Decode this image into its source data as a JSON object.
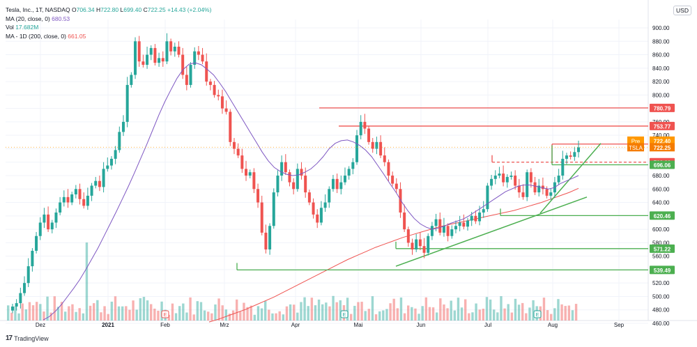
{
  "legend": {
    "title": "Tesla, Inc., 1T, NASDAQ",
    "o_label": "O",
    "o": "706.34",
    "h_label": "H",
    "h": "722.80",
    "l_label": "L",
    "l": "699.40",
    "c_label": "C",
    "c": "722.25",
    "change": "+14.43 (+2.04%)",
    "ma20_label": "MA (20, close, 0)",
    "ma20_value": "680.53",
    "vol_label": "Vol",
    "vol_value": "17.682M",
    "ma200_label": "MA - 1D (200, close, 0)",
    "ma200_value": "661.05"
  },
  "currency": "USD",
  "brand": "TradingView",
  "chart_data": {
    "type": "candlestick",
    "symbol": "TSLA",
    "ylim": [
      460,
      900
    ],
    "yticks": [
      900,
      880,
      860,
      840,
      820,
      800,
      780,
      760,
      740,
      720,
      700,
      680,
      660,
      640,
      620,
      600,
      580,
      560,
      540,
      520,
      500,
      480,
      460
    ],
    "xlabels": [
      "Dez",
      "2021",
      "Feb",
      "Mrz",
      "Apr",
      "Mai",
      "Jun",
      "Jul",
      "Aug",
      "Sep"
    ],
    "price_lines": [
      {
        "value": 780.79,
        "label": "780.79",
        "color": "#ef5350"
      },
      {
        "value": 753.77,
        "label": "753.77",
        "color": "#ef5350"
      },
      {
        "value": 726.94,
        "label": "726.94",
        "color": "#ef5350"
      },
      {
        "value": 700.0,
        "label": "700.00",
        "color": "#ef5350"
      },
      {
        "value": 696.06,
        "label": "696.06",
        "color": "#4caf50"
      },
      {
        "value": 620.46,
        "label": "620.46",
        "color": "#4caf50"
      },
      {
        "value": 571.22,
        "label": "571.22",
        "color": "#4caf50"
      },
      {
        "value": 539.49,
        "label": "539.49",
        "color": "#4caf50"
      }
    ],
    "pre_label": "Pre",
    "pre_value": "722.40",
    "last_label": "TSLA",
    "last_value": "722.25",
    "closes": [
      485,
      490,
      505,
      520,
      545,
      568,
      590,
      610,
      622,
      600,
      610,
      625,
      640,
      648,
      640,
      652,
      660,
      645,
      635,
      650,
      665,
      672,
      663,
      690,
      695,
      705,
      718,
      745,
      760,
      815,
      830,
      880,
      850,
      845,
      860,
      870,
      848,
      855,
      850,
      880,
      865,
      872,
      860,
      830,
      815,
      845,
      865,
      860,
      850,
      820,
      815,
      800,
      798,
      780,
      775,
      730,
      720,
      710,
      690,
      680,
      685,
      660,
      640,
      595,
      570,
      605,
      655,
      680,
      700,
      685,
      670,
      660,
      690,
      680,
      655,
      640,
      622,
      610,
      632,
      640,
      660,
      675,
      660,
      670,
      680,
      690,
      700,
      740,
      760,
      750,
      730,
      720,
      730,
      710,
      700,
      680,
      668,
      660,
      625,
      600,
      580,
      570,
      585,
      575,
      565,
      590,
      605,
      615,
      595,
      605,
      590,
      600,
      605,
      610,
      604,
      613,
      620,
      612,
      625,
      630,
      665,
      675,
      680,
      683,
      670,
      678,
      680,
      665,
      655,
      648,
      685,
      670,
      655,
      665,
      660,
      650,
      655,
      670,
      680,
      705,
      710,
      708,
      715,
      722
    ],
    "ma20": [
      465,
      470,
      478,
      488,
      500,
      512,
      525,
      540,
      556,
      572,
      590,
      608,
      626,
      645,
      664,
      684,
      705,
      726,
      748,
      770,
      790,
      808,
      825,
      838,
      846,
      848,
      845,
      838,
      830,
      818,
      805,
      790,
      775,
      760,
      745,
      730,
      715,
      702,
      692,
      686,
      682,
      680,
      681,
      685,
      690,
      698,
      708,
      720,
      728,
      732,
      733,
      730,
      725,
      718,
      708,
      695,
      682,
      668,
      655,
      640,
      627,
      616,
      608,
      603,
      600,
      602,
      605,
      609,
      612,
      615,
      620,
      626,
      632,
      638,
      644,
      650,
      656,
      660,
      664,
      666,
      666,
      664,
      662,
      660,
      662,
      668,
      672,
      676,
      680
    ],
    "ma200": [
      462,
      466,
      471,
      476,
      481,
      487,
      493,
      499,
      506,
      513,
      520,
      527,
      534,
      541,
      548,
      555,
      561,
      567,
      573,
      578,
      583,
      588,
      592,
      596,
      600,
      604,
      607,
      610,
      613,
      616,
      619,
      622,
      625,
      628,
      632,
      636,
      640,
      645,
      650,
      655,
      661
    ],
    "volume_bars": 160
  }
}
